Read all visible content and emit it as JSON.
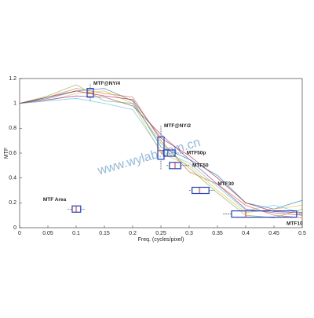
{
  "chart_data": {
    "type": "line",
    "x_label": "Freq. (cycles/pixel)",
    "y_label": "MTF",
    "watermark": "www.wylab.com.cn",
    "x": [
      0,
      0.05,
      0.1,
      0.15,
      0.2,
      0.25,
      0.3,
      0.35,
      0.4,
      0.45,
      0.5
    ],
    "series": [
      {
        "color": "#0072bd",
        "values": [
          1,
          1.04,
          1.1,
          1.12,
          1.02,
          0.65,
          0.55,
          0.42,
          0.2,
          0.15,
          0.22
        ]
      },
      {
        "color": "#d95319",
        "values": [
          1,
          1.05,
          1.12,
          1.08,
          1.05,
          0.7,
          0.45,
          0.35,
          0.18,
          0.1,
          0.08
        ]
      },
      {
        "color": "#edb120",
        "values": [
          1,
          1.02,
          1.08,
          1.1,
          1.0,
          0.6,
          0.5,
          0.3,
          0.12,
          0.15,
          0.18
        ]
      },
      {
        "color": "#7e2f8e",
        "values": [
          1,
          1.03,
          1.06,
          1.05,
          0.98,
          0.75,
          0.55,
          0.35,
          0.15,
          0.12,
          0.1
        ]
      },
      {
        "color": "#77ac30",
        "values": [
          1,
          1.06,
          1.15,
          1.02,
          1.0,
          0.68,
          0.48,
          0.28,
          0.1,
          0.08,
          0.15
        ]
      },
      {
        "color": "#4dbeee",
        "values": [
          1,
          1.02,
          1.04,
          1.0,
          0.95,
          0.62,
          0.52,
          0.33,
          0.14,
          0.18,
          0.12
        ]
      },
      {
        "color": "#a2142f",
        "values": [
          1,
          1.05,
          1.1,
          1.06,
          1.03,
          0.72,
          0.58,
          0.4,
          0.2,
          0.13,
          0.12
        ]
      }
    ],
    "boxes": [
      {
        "name": "MTF Area",
        "orientation": "horizontal",
        "position": 0.15,
        "whisker_low": 0.085,
        "q1": 0.093,
        "median": 0.1,
        "q3": 0.108,
        "whisker_high": 0.115
      },
      {
        "name": "MTF@NY/4",
        "orientation": "vertical",
        "position": 0.125,
        "whisker_low": 1.02,
        "q1": 1.05,
        "median": 1.08,
        "q3": 1.12,
        "whisker_high": 1.16
      },
      {
        "name": "MTF@NY/2",
        "orientation": "vertical",
        "position": 0.25,
        "whisker_low": 0.47,
        "q1": 0.55,
        "median": 0.62,
        "q3": 0.73,
        "whisker_high": 0.82
      },
      {
        "name": "MTF50p",
        "orientation": "horizontal",
        "position": 0.6,
        "whisker_low": 0.25,
        "q1": 0.255,
        "median": 0.262,
        "q3": 0.275,
        "whisker_high": 0.29
      },
      {
        "name": "MTF50",
        "orientation": "horizontal",
        "position": 0.5,
        "whisker_low": 0.26,
        "q1": 0.265,
        "median": 0.275,
        "q3": 0.285,
        "whisker_high": 0.3
      },
      {
        "name": "MTF30",
        "orientation": "horizontal",
        "position": 0.3,
        "whisker_low": 0.3,
        "q1": 0.305,
        "median": 0.318,
        "q3": 0.335,
        "whisker_high": 0.345
      },
      {
        "name": "MTF10",
        "orientation": "horizontal",
        "position": 0.11,
        "whisker_low": 0.36,
        "q1": 0.375,
        "median": 0.4,
        "q3": 0.49,
        "whisker_high": 0.5
      }
    ],
    "xlim": [
      0,
      0.5
    ],
    "xticks": [
      0,
      0.05,
      0.1,
      0.15,
      0.2,
      0.25,
      0.3,
      0.35,
      0.4,
      0.45,
      0.5
    ],
    "ylim": [
      0,
      1.2
    ],
    "yticks": [
      0,
      0.2,
      0.4,
      0.6,
      0.8,
      1,
      1.2
    ],
    "grid": false,
    "box_color": "#1f3fbf",
    "median_color": "#e0202a"
  }
}
